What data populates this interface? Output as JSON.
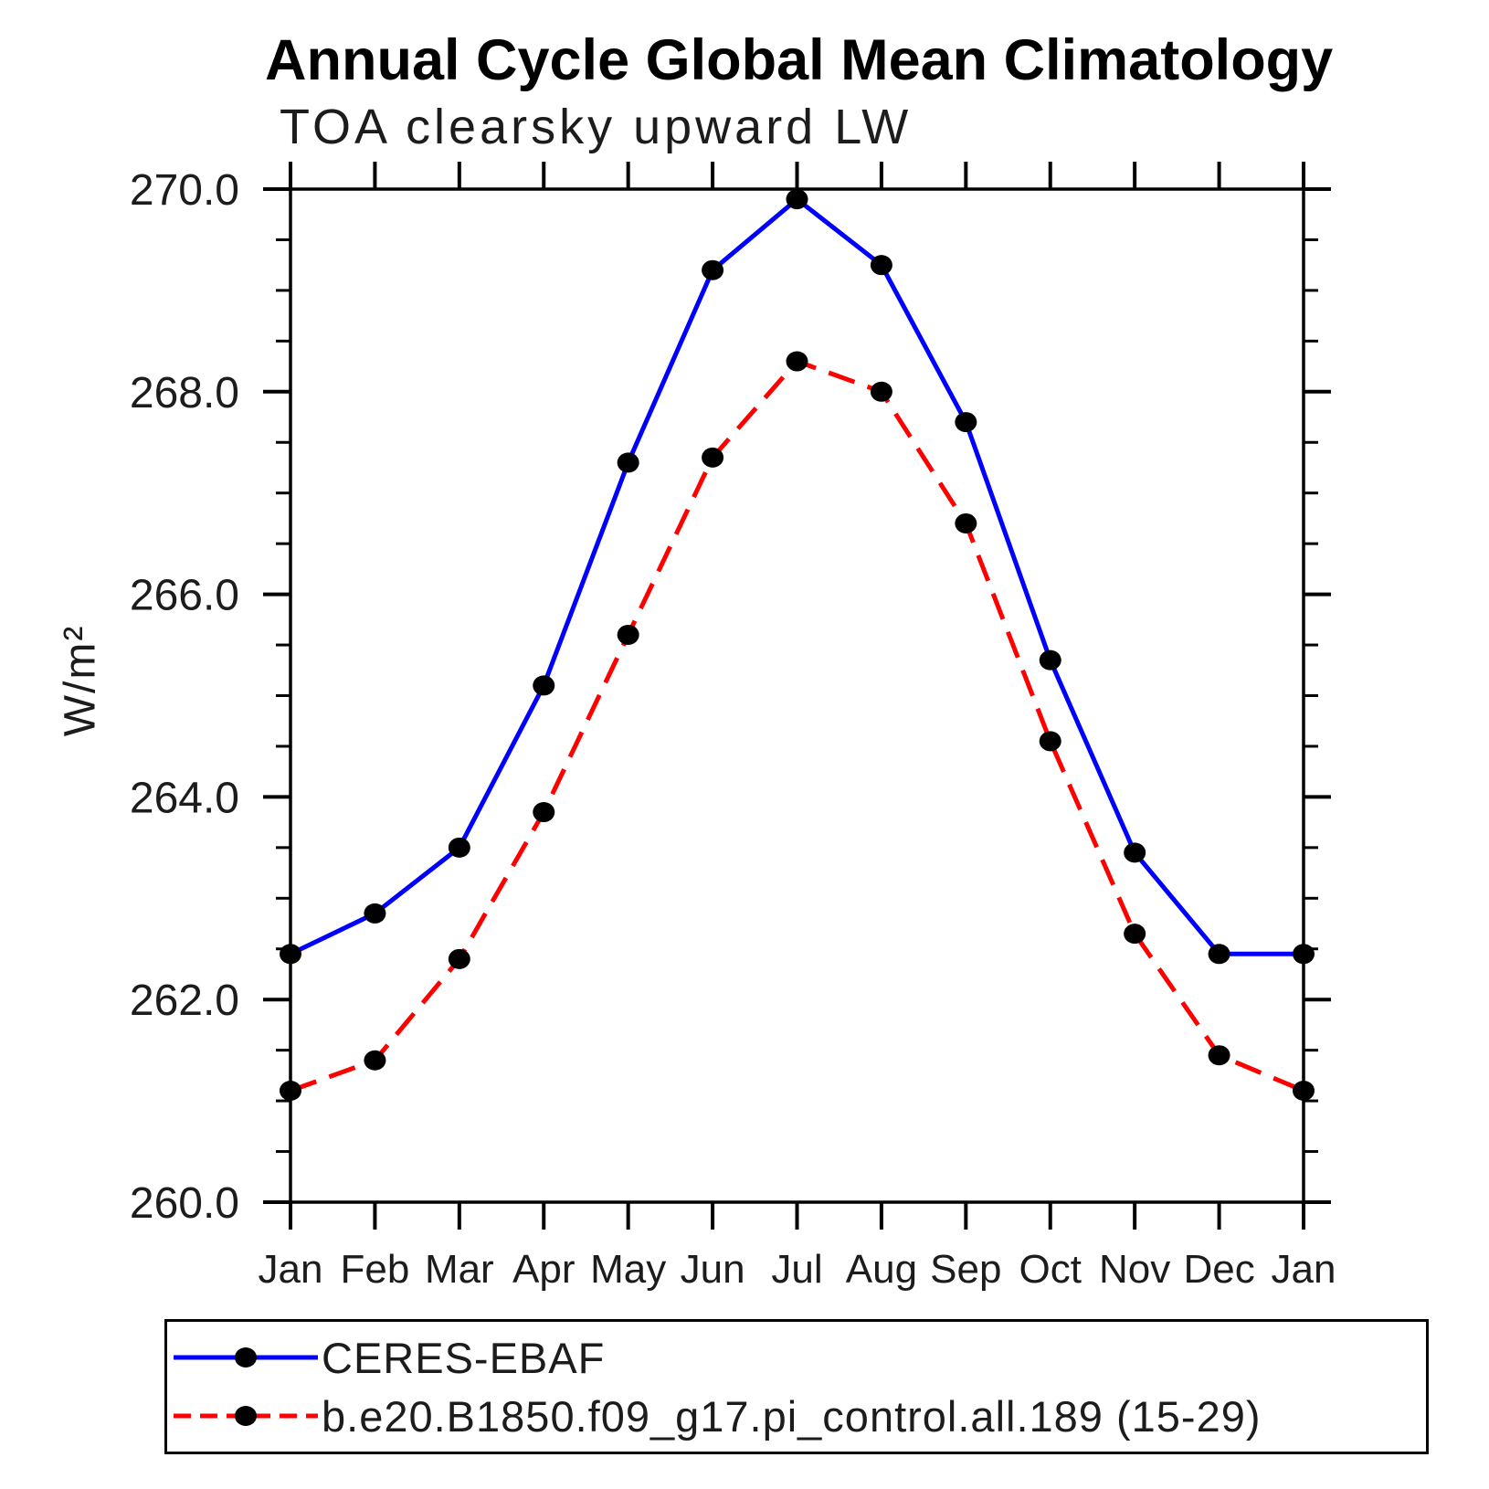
{
  "title": "Annual Cycle Global Mean Climatology",
  "subtitle": "TOA clearsky upward LW",
  "ylabel": "W/m²",
  "chart_data": {
    "type": "line",
    "categories": [
      "Jan",
      "Feb",
      "Mar",
      "Apr",
      "May",
      "Jun",
      "Jul",
      "Aug",
      "Sep",
      "Oct",
      "Nov",
      "Dec",
      "Jan"
    ],
    "series": [
      {
        "name": "CERES-EBAF",
        "color": "#0000ff",
        "style": "solid",
        "marker": "black-filled-circle",
        "values": [
          262.45,
          262.85,
          263.5,
          265.1,
          267.3,
          269.2,
          269.9,
          269.25,
          267.7,
          265.35,
          263.45,
          262.45,
          262.45
        ]
      },
      {
        "name": "b.e20.B1850.f09_g17.pi_control.all.189 (15-29)",
        "color": "#ff0000",
        "style": "dashed",
        "marker": "black-filled-circle",
        "values": [
          261.1,
          261.4,
          262.4,
          263.85,
          265.6,
          267.35,
          268.3,
          268.0,
          266.7,
          264.55,
          262.65,
          261.45,
          261.1
        ]
      }
    ],
    "ylabel": "W/m²",
    "ylim": [
      260.0,
      270.0
    ],
    "ytick_major": 2.0,
    "ytick_minor": 0.5,
    "ytick_labels": [
      "260.0",
      "262.0",
      "264.0",
      "266.0",
      "268.0",
      "270.0"
    ],
    "xlabel": "",
    "grid": false,
    "legend_position": "bottom",
    "marker_color": "#000000",
    "axis_color": "#000000"
  }
}
